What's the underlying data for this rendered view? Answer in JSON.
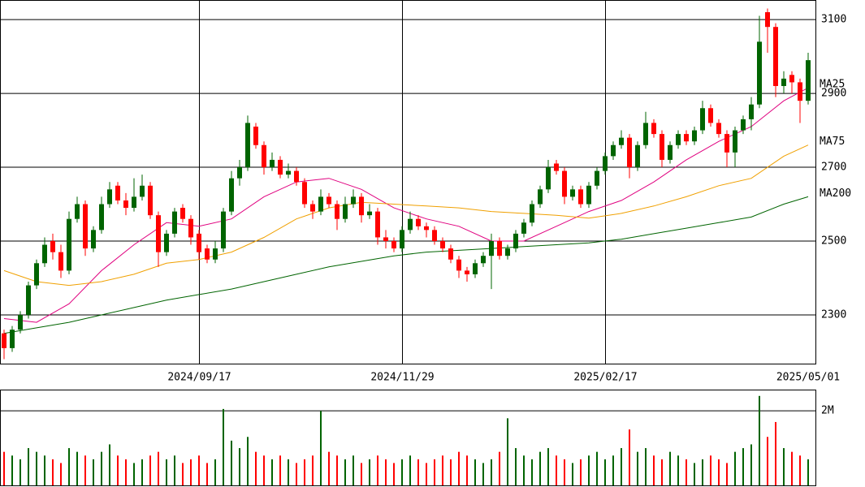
{
  "chart_data": [
    {
      "type": "candlestick",
      "up_color": "#006400",
      "down_color": "#ff0000",
      "xlim": [
        -0.5,
        100
      ],
      "xticks": [
        {
          "value": 24,
          "label": "2024/09/17"
        },
        {
          "value": 49,
          "label": "2024/11/29"
        },
        {
          "value": 74,
          "label": "2025/02/17"
        },
        {
          "value": 99,
          "label": "2025/05/01"
        }
      ],
      "ylim": [
        2168,
        3153
      ],
      "yticks": [
        2300,
        2500,
        2700,
        2900,
        3100
      ],
      "grid": true,
      "ohlc": [
        [
          2250,
          2260,
          2180,
          2210
        ],
        [
          2210,
          2270,
          2200,
          2260
        ],
        [
          2260,
          2310,
          2250,
          2300
        ],
        [
          2300,
          2390,
          2290,
          2380
        ],
        [
          2380,
          2450,
          2370,
          2440
        ],
        [
          2440,
          2510,
          2430,
          2490
        ],
        [
          2500,
          2520,
          2450,
          2470
        ],
        [
          2470,
          2490,
          2400,
          2420
        ],
        [
          2420,
          2580,
          2410,
          2560
        ],
        [
          2560,
          2620,
          2550,
          2600
        ],
        [
          2600,
          2610,
          2460,
          2480
        ],
        [
          2480,
          2540,
          2470,
          2530
        ],
        [
          2530,
          2620,
          2520,
          2600
        ],
        [
          2600,
          2660,
          2590,
          2640
        ],
        [
          2650,
          2660,
          2600,
          2610
        ],
        [
          2610,
          2630,
          2570,
          2590
        ],
        [
          2590,
          2670,
          2580,
          2620
        ],
        [
          2620,
          2680,
          2610,
          2650
        ],
        [
          2650,
          2660,
          2560,
          2570
        ],
        [
          2570,
          2580,
          2430,
          2470
        ],
        [
          2470,
          2530,
          2460,
          2520
        ],
        [
          2520,
          2590,
          2510,
          2580
        ],
        [
          2590,
          2600,
          2550,
          2560
        ],
        [
          2560,
          2570,
          2490,
          2510
        ],
        [
          2520,
          2530,
          2450,
          2470
        ],
        [
          2480,
          2490,
          2440,
          2450
        ],
        [
          2450,
          2500,
          2440,
          2480
        ],
        [
          2480,
          2590,
          2470,
          2580
        ],
        [
          2580,
          2690,
          2570,
          2670
        ],
        [
          2670,
          2720,
          2650,
          2700
        ],
        [
          2700,
          2840,
          2690,
          2820
        ],
        [
          2810,
          2820,
          2750,
          2760
        ],
        [
          2760,
          2770,
          2680,
          2700
        ],
        [
          2700,
          2740,
          2690,
          2720
        ],
        [
          2720,
          2730,
          2670,
          2680
        ],
        [
          2680,
          2710,
          2670,
          2690
        ],
        [
          2690,
          2700,
          2650,
          2660
        ],
        [
          2660,
          2670,
          2590,
          2600
        ],
        [
          2600,
          2610,
          2560,
          2580
        ],
        [
          2580,
          2640,
          2570,
          2620
        ],
        [
          2620,
          2630,
          2590,
          2600
        ],
        [
          2600,
          2610,
          2530,
          2560
        ],
        [
          2560,
          2620,
          2550,
          2600
        ],
        [
          2600,
          2640,
          2590,
          2620
        ],
        [
          2620,
          2630,
          2550,
          2570
        ],
        [
          2570,
          2600,
          2560,
          2580
        ],
        [
          2580,
          2590,
          2490,
          2510
        ],
        [
          2510,
          2530,
          2480,
          2500
        ],
        [
          2500,
          2510,
          2470,
          2480
        ],
        [
          2480,
          2540,
          2470,
          2530
        ],
        [
          2530,
          2580,
          2520,
          2560
        ],
        [
          2560,
          2570,
          2530,
          2540
        ],
        [
          2540,
          2550,
          2510,
          2530
        ],
        [
          2530,
          2540,
          2490,
          2500
        ],
        [
          2500,
          2510,
          2470,
          2480
        ],
        [
          2480,
          2490,
          2440,
          2450
        ],
        [
          2450,
          2460,
          2400,
          2420
        ],
        [
          2420,
          2430,
          2390,
          2410
        ],
        [
          2410,
          2450,
          2400,
          2440
        ],
        [
          2440,
          2470,
          2430,
          2460
        ],
        [
          2460,
          2520,
          2370,
          2500
        ],
        [
          2500,
          2510,
          2450,
          2460
        ],
        [
          2460,
          2490,
          2450,
          2480
        ],
        [
          2480,
          2530,
          2470,
          2520
        ],
        [
          2520,
          2560,
          2510,
          2550
        ],
        [
          2550,
          2610,
          2540,
          2600
        ],
        [
          2600,
          2650,
          2590,
          2640
        ],
        [
          2640,
          2720,
          2630,
          2700
        ],
        [
          2710,
          2720,
          2680,
          2690
        ],
        [
          2690,
          2700,
          2600,
          2620
        ],
        [
          2620,
          2650,
          2610,
          2640
        ],
        [
          2640,
          2650,
          2590,
          2600
        ],
        [
          2600,
          2660,
          2590,
          2650
        ],
        [
          2650,
          2700,
          2640,
          2690
        ],
        [
          2690,
          2740,
          2680,
          2730
        ],
        [
          2730,
          2770,
          2720,
          2760
        ],
        [
          2760,
          2800,
          2750,
          2780
        ],
        [
          2780,
          2790,
          2670,
          2700
        ],
        [
          2700,
          2770,
          2690,
          2760
        ],
        [
          2760,
          2850,
          2750,
          2820
        ],
        [
          2820,
          2830,
          2780,
          2790
        ],
        [
          2790,
          2800,
          2700,
          2720
        ],
        [
          2720,
          2770,
          2710,
          2760
        ],
        [
          2760,
          2800,
          2750,
          2790
        ],
        [
          2790,
          2800,
          2760,
          2770
        ],
        [
          2770,
          2810,
          2760,
          2800
        ],
        [
          2800,
          2880,
          2790,
          2860
        ],
        [
          2860,
          2870,
          2810,
          2820
        ],
        [
          2820,
          2830,
          2780,
          2790
        ],
        [
          2790,
          2800,
          2700,
          2740
        ],
        [
          2740,
          2810,
          2700,
          2800
        ],
        [
          2800,
          2840,
          2790,
          2830
        ],
        [
          2830,
          2890,
          2800,
          2870
        ],
        [
          2870,
          3110,
          2860,
          3040
        ],
        [
          3120,
          3130,
          3010,
          3080
        ],
        [
          3080,
          3090,
          2890,
          2920
        ],
        [
          2920,
          2960,
          2900,
          2940
        ],
        [
          2950,
          2960,
          2900,
          2930
        ],
        [
          2930,
          2940,
          2820,
          2880
        ],
        [
          2880,
          3010,
          2870,
          2990
        ]
      ],
      "series": [
        {
          "name": "MA25",
          "color": "#e0007f",
          "x": [
            0,
            4,
            8,
            12,
            16,
            20,
            24,
            28,
            32,
            36,
            40,
            44,
            48,
            52,
            56,
            60,
            64,
            68,
            72,
            76,
            80,
            84,
            88,
            92,
            96,
            99
          ],
          "values": [
            2290,
            2280,
            2330,
            2420,
            2490,
            2550,
            2540,
            2560,
            2620,
            2660,
            2670,
            2640,
            2590,
            2560,
            2540,
            2500,
            2500,
            2540,
            2580,
            2610,
            2660,
            2720,
            2770,
            2810,
            2880,
            2915
          ]
        },
        {
          "name": "MA75",
          "color": "#f0a000",
          "x": [
            0,
            4,
            8,
            12,
            16,
            20,
            24,
            28,
            32,
            36,
            40,
            44,
            48,
            52,
            56,
            60,
            64,
            68,
            72,
            76,
            80,
            84,
            88,
            92,
            96,
            99
          ],
          "values": [
            2420,
            2390,
            2380,
            2390,
            2410,
            2440,
            2450,
            2470,
            2510,
            2560,
            2590,
            2605,
            2600,
            2595,
            2590,
            2580,
            2575,
            2570,
            2562,
            2575,
            2595,
            2620,
            2650,
            2670,
            2730,
            2760
          ]
        },
        {
          "name": "MA200",
          "color": "#006400",
          "x": [
            0,
            4,
            8,
            12,
            16,
            20,
            24,
            28,
            32,
            36,
            40,
            44,
            48,
            52,
            56,
            60,
            64,
            68,
            72,
            76,
            80,
            84,
            88,
            92,
            96,
            99
          ],
          "values": [
            2250,
            2265,
            2280,
            2300,
            2320,
            2340,
            2355,
            2370,
            2390,
            2410,
            2430,
            2445,
            2460,
            2470,
            2475,
            2480,
            2485,
            2490,
            2495,
            2505,
            2520,
            2535,
            2550,
            2565,
            2600,
            2620
          ]
        }
      ]
    },
    {
      "type": "volume",
      "xlim": [
        -0.5,
        100
      ],
      "ylim": [
        0,
        2.57
      ],
      "yticks": [
        {
          "value": 2,
          "label": "2M"
        }
      ],
      "values": [
        0.9,
        0.8,
        0.7,
        1.0,
        0.9,
        0.8,
        0.7,
        0.6,
        1.0,
        0.9,
        0.8,
        0.7,
        0.9,
        1.1,
        0.8,
        0.7,
        0.6,
        0.7,
        0.8,
        0.9,
        0.7,
        0.8,
        0.6,
        0.7,
        0.8,
        0.6,
        0.7,
        2.05,
        1.2,
        1.0,
        1.3,
        0.9,
        0.8,
        0.7,
        0.8,
        0.7,
        0.6,
        0.7,
        0.8,
        2.0,
        0.9,
        0.8,
        0.7,
        0.8,
        0.6,
        0.7,
        0.8,
        0.7,
        0.6,
        0.7,
        0.8,
        0.7,
        0.6,
        0.7,
        0.8,
        0.7,
        0.9,
        0.8,
        0.7,
        0.6,
        0.7,
        0.9,
        1.8,
        1.0,
        0.8,
        0.7,
        0.9,
        1.0,
        0.8,
        0.7,
        0.6,
        0.7,
        0.8,
        0.9,
        0.7,
        0.8,
        1.0,
        1.5,
        0.9,
        1.0,
        0.8,
        0.7,
        0.9,
        0.8,
        0.7,
        0.6,
        0.7,
        0.8,
        0.7,
        0.6,
        0.9,
        1.0,
        1.1,
        2.4,
        1.3,
        1.7,
        1.0,
        0.9,
        0.8,
        0.7
      ]
    }
  ]
}
